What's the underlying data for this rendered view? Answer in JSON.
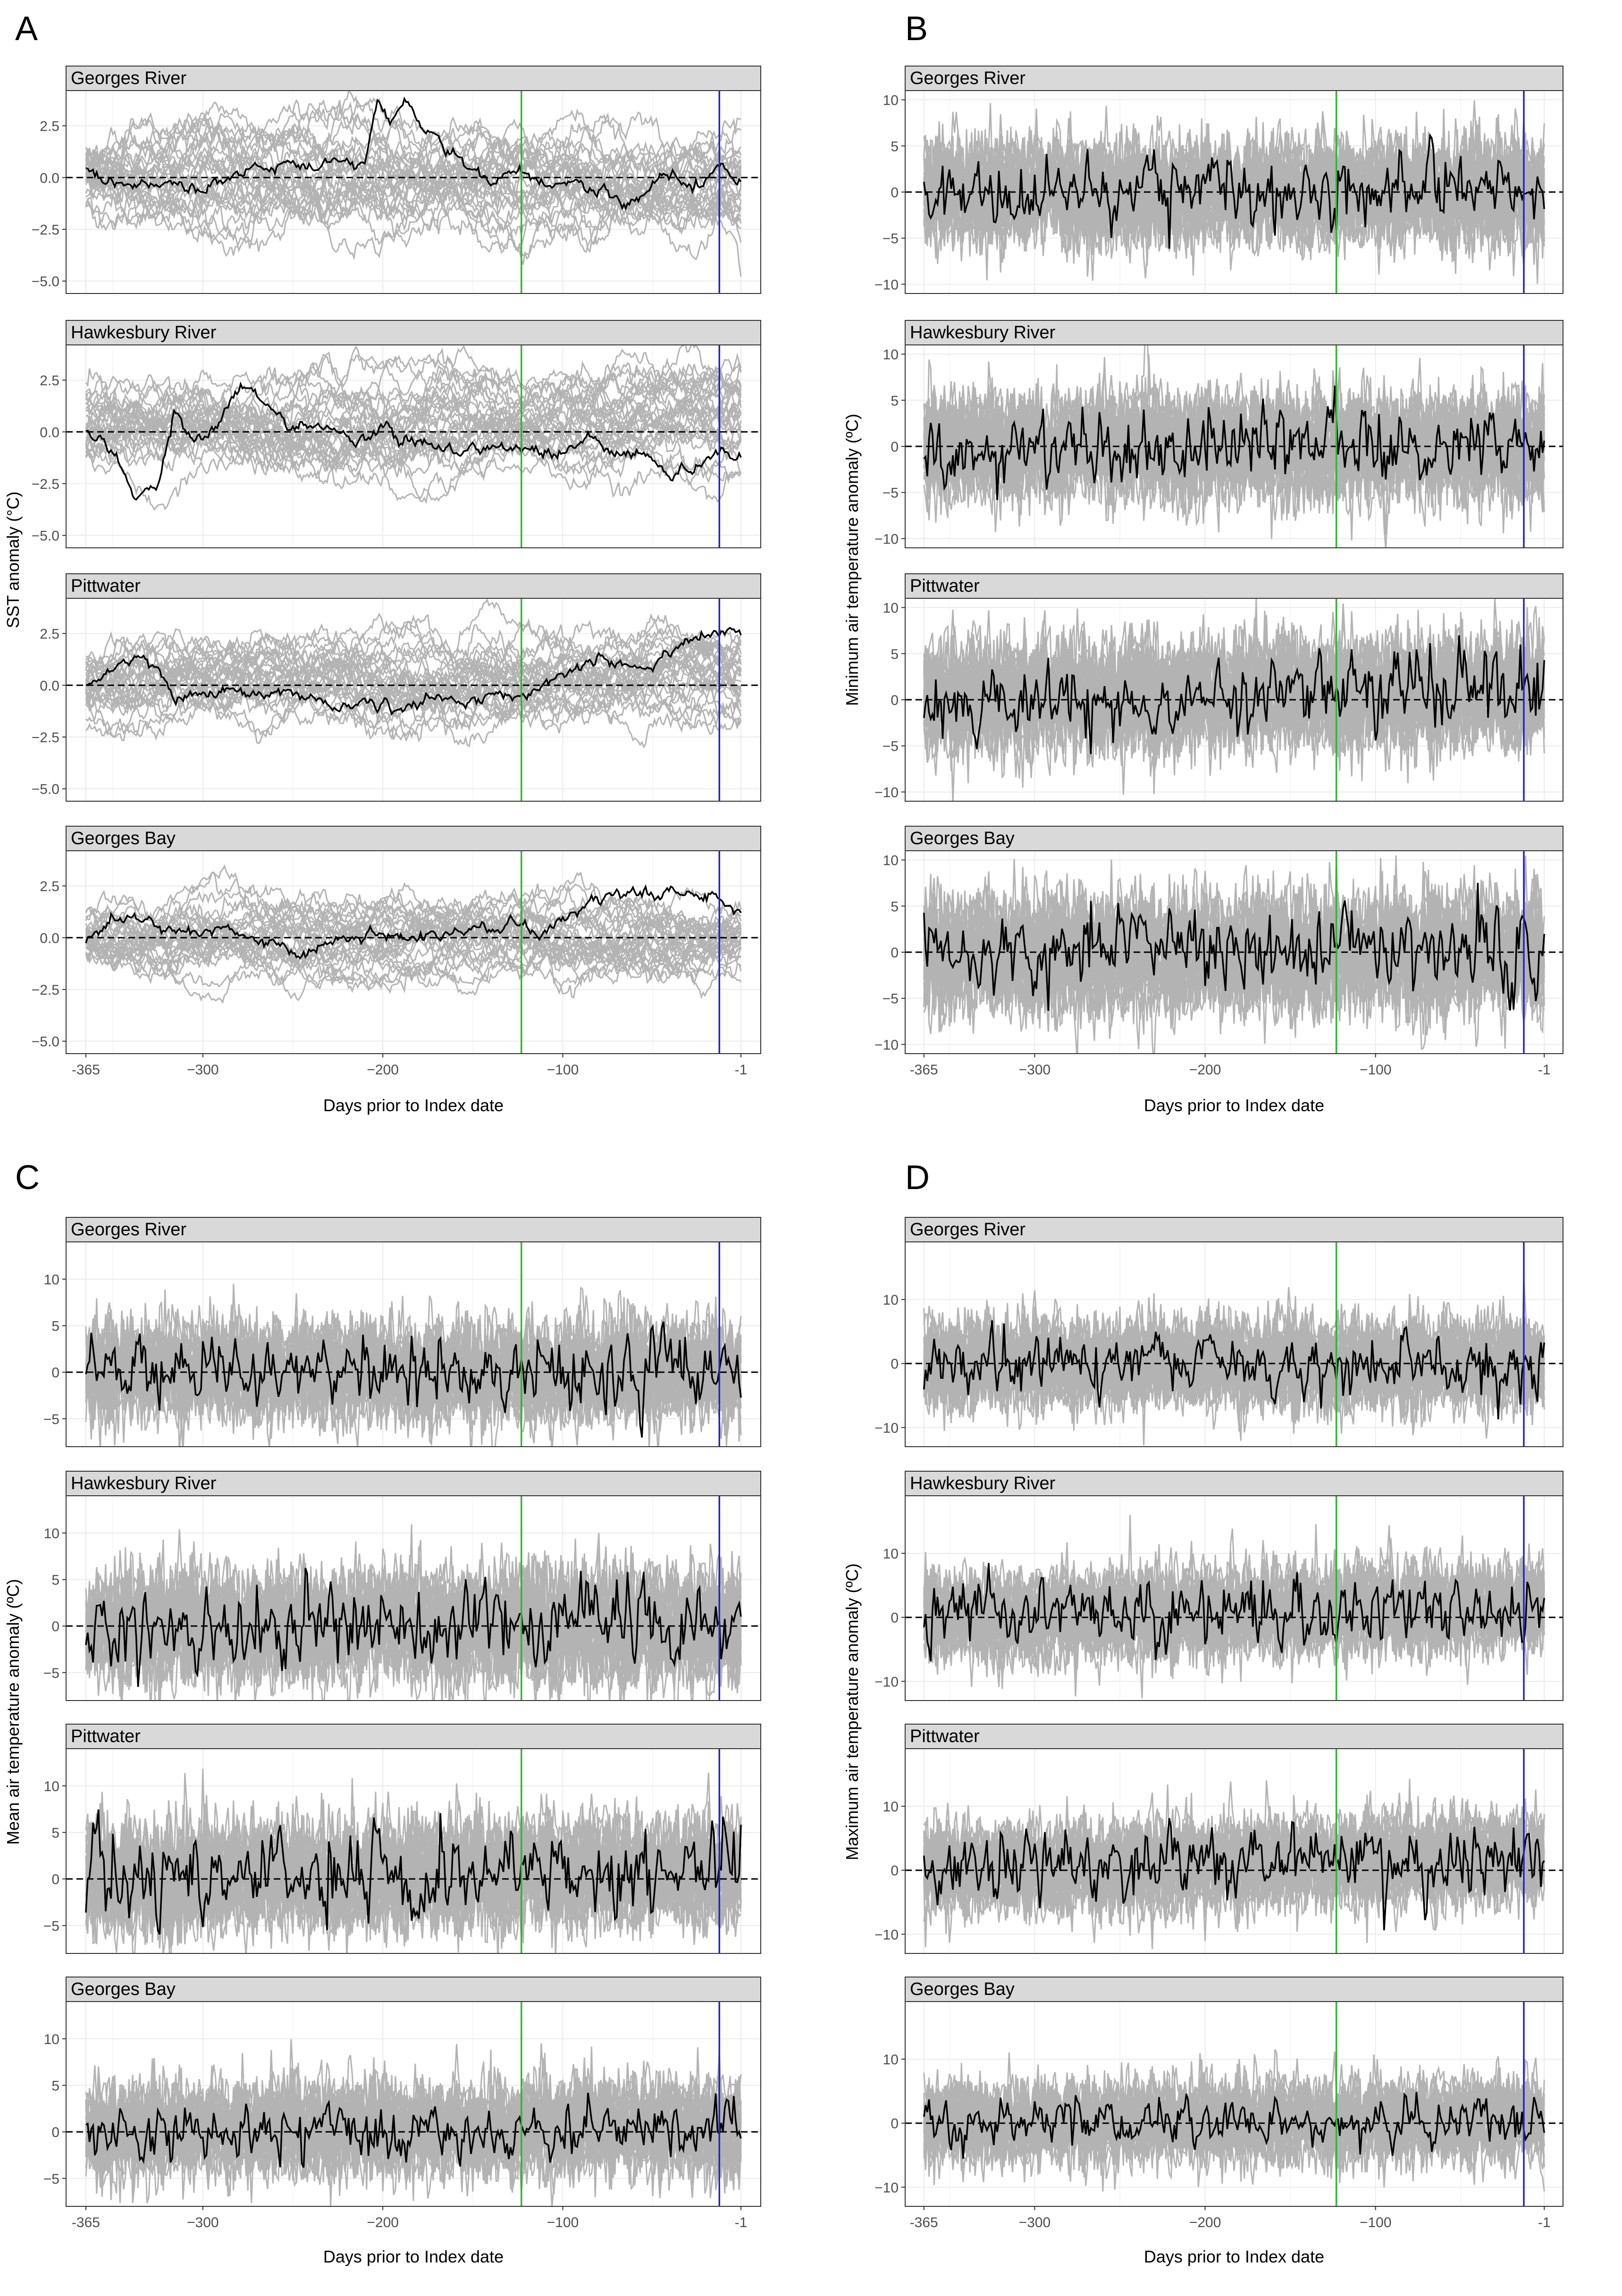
{
  "figure": {
    "panel_letters": [
      "A",
      "B",
      "C",
      "D"
    ],
    "facet_titles": [
      "Georges River",
      "Hawkesbury River",
      "Pittwater",
      "Georges Bay"
    ],
    "xlabel": "Days prior to Index date",
    "x_ticks": [
      -365,
      -300,
      -200,
      -100,
      -1
    ],
    "x_tick_labels": [
      "-365",
      "−300",
      "−200",
      "−100",
      "-1"
    ],
    "vlines": [
      {
        "x": -123,
        "color": "#2db82d"
      },
      {
        "x": -13,
        "color": "#2424c8"
      }
    ],
    "colors": {
      "background_lines": "#b3b3b3",
      "index_line": "#000000",
      "strip": "#d9d9d9",
      "grid": "#ebebeb"
    }
  },
  "chart_data": [
    {
      "panel": "A",
      "type": "line",
      "ylabel": "SST anomaly (°C)",
      "xlim": [
        -376,
        10
      ],
      "ylim": [
        -5.6,
        4.2
      ],
      "y_ticks": [
        -5.0,
        -2.5,
        0.0,
        2.5
      ],
      "y_tick_labels": [
        "−5.0",
        "−2.5",
        "0.0",
        "2.5"
      ],
      "hline": 0,
      "facets": [
        {
          "name": "Georges River",
          "spread": 1.3,
          "noise": 0.3,
          "background_series": 30,
          "index_series": [
            [
              -365,
              0.5
            ],
            [
              -355,
              -0.3
            ],
            [
              -340,
              -0.5
            ],
            [
              -320,
              -0.2
            ],
            [
              -300,
              -0.6
            ],
            [
              -280,
              0.3
            ],
            [
              -260,
              0.5
            ],
            [
              -240,
              0.4
            ],
            [
              -225,
              0.9
            ],
            [
              -210,
              0.6
            ],
            [
              -203,
              3.5
            ],
            [
              -196,
              2.5
            ],
            [
              -188,
              3.7
            ],
            [
              -180,
              2.6
            ],
            [
              -170,
              1.8
            ],
            [
              -160,
              0.9
            ],
            [
              -150,
              0.3
            ],
            [
              -140,
              -0.2
            ],
            [
              -123,
              0.2
            ],
            [
              -110,
              -0.4
            ],
            [
              -100,
              -0.2
            ],
            [
              -80,
              -0.6
            ],
            [
              -65,
              -1.3
            ],
            [
              -55,
              -0.8
            ],
            [
              -45,
              0.3
            ],
            [
              -35,
              -0.1
            ],
            [
              -25,
              -0.6
            ],
            [
              -13,
              0.7
            ],
            [
              -5,
              -0.3
            ],
            [
              -1,
              -0.3
            ]
          ]
        },
        {
          "name": "Hawkesbury River",
          "spread": 1.2,
          "noise": 0.28,
          "background_series": 30,
          "index_series": [
            [
              -365,
              0.1
            ],
            [
              -350,
              -0.8
            ],
            [
              -338,
              -3.0
            ],
            [
              -325,
              -2.6
            ],
            [
              -316,
              0.8
            ],
            [
              -305,
              -0.3
            ],
            [
              -292,
              0.3
            ],
            [
              -282,
              1.8
            ],
            [
              -272,
              2.0
            ],
            [
              -262,
              1.0
            ],
            [
              -245,
              0.0
            ],
            [
              -230,
              0.1
            ],
            [
              -215,
              -0.5
            ],
            [
              -200,
              0.2
            ],
            [
              -190,
              -0.2
            ],
            [
              -180,
              -0.4
            ],
            [
              -165,
              -0.9
            ],
            [
              -150,
              -0.8
            ],
            [
              -123,
              -0.8
            ],
            [
              -100,
              -0.9
            ],
            [
              -85,
              -0.3
            ],
            [
              -70,
              -1.2
            ],
            [
              -55,
              -1.0
            ],
            [
              -40,
              -2.1
            ],
            [
              -25,
              -1.7
            ],
            [
              -13,
              -0.9
            ],
            [
              -5,
              -1.3
            ],
            [
              -1,
              -1.2
            ]
          ]
        },
        {
          "name": "Pittwater",
          "spread": 1.1,
          "noise": 0.26,
          "background_series": 30,
          "index_series": [
            [
              -365,
              -0.1
            ],
            [
              -355,
              0.6
            ],
            [
              -345,
              1.0
            ],
            [
              -335,
              1.4
            ],
            [
              -325,
              0.8
            ],
            [
              -315,
              -0.6
            ],
            [
              -300,
              -0.4
            ],
            [
              -285,
              -0.2
            ],
            [
              -270,
              -0.5
            ],
            [
              -255,
              -0.2
            ],
            [
              -240,
              -0.6
            ],
            [
              -225,
              -1.2
            ],
            [
              -210,
              -0.8
            ],
            [
              -190,
              -1.1
            ],
            [
              -170,
              -0.6
            ],
            [
              -150,
              -0.9
            ],
            [
              -135,
              -0.4
            ],
            [
              -123,
              -0.6
            ],
            [
              -110,
              0.1
            ],
            [
              -95,
              0.6
            ],
            [
              -80,
              1.4
            ],
            [
              -70,
              1.2
            ],
            [
              -55,
              0.6
            ],
            [
              -45,
              1.4
            ],
            [
              -35,
              2.0
            ],
            [
              -25,
              2.4
            ],
            [
              -13,
              2.3
            ],
            [
              -5,
              2.9
            ],
            [
              -1,
              3.0
            ]
          ]
        },
        {
          "name": "Georges Bay",
          "spread": 1.0,
          "noise": 0.24,
          "background_series": 30,
          "index_series": [
            [
              -365,
              0.0
            ],
            [
              -355,
              0.6
            ],
            [
              -345,
              1.0
            ],
            [
              -335,
              0.9
            ],
            [
              -320,
              0.4
            ],
            [
              -305,
              0.2
            ],
            [
              -290,
              0.4
            ],
            [
              -275,
              0.1
            ],
            [
              -260,
              -0.2
            ],
            [
              -248,
              -0.9
            ],
            [
              -238,
              -0.5
            ],
            [
              -225,
              -0.2
            ],
            [
              -210,
              0.2
            ],
            [
              -195,
              -0.1
            ],
            [
              -180,
              0.0
            ],
            [
              -165,
              0.2
            ],
            [
              -150,
              0.4
            ],
            [
              -135,
              0.4
            ],
            [
              -123,
              0.6
            ],
            [
              -112,
              0.2
            ],
            [
              -100,
              0.9
            ],
            [
              -90,
              1.5
            ],
            [
              -75,
              1.9
            ],
            [
              -60,
              2.3
            ],
            [
              -45,
              2.2
            ],
            [
              -30,
              1.9
            ],
            [
              -13,
              2.0
            ],
            [
              -5,
              1.4
            ],
            [
              -1,
              1.2
            ]
          ]
        }
      ]
    },
    {
      "panel": "B",
      "type": "line",
      "ylabel": "Minimum air temperature anomaly (ºC)",
      "xlim": [
        -376,
        10
      ],
      "ylim": [
        -11,
        11
      ],
      "y_ticks": [
        -10,
        -5,
        0,
        5,
        10
      ],
      "y_tick_labels": [
        "−10",
        "−5",
        "0",
        "5",
        "10"
      ],
      "hline": 0,
      "facets": [
        {
          "name": "Georges River",
          "spread": 4.5,
          "index_amp": 3.0,
          "trend_start": 0.0,
          "trend_end": 0.0,
          "background_series": 30
        },
        {
          "name": "Hawkesbury River",
          "spread": 4.5,
          "index_amp": 3.2,
          "trend_start": 0.0,
          "trend_end": 0.0,
          "background_series": 30
        },
        {
          "name": "Pittwater",
          "spread": 4.8,
          "index_amp": 3.4,
          "trend_start": 0.0,
          "trend_end": 1.0,
          "background_series": 30
        },
        {
          "name": "Georges Bay",
          "spread": 5.0,
          "index_amp": 3.5,
          "trend_start": 0.0,
          "trend_end": 0.0,
          "background_series": 30
        }
      ]
    },
    {
      "panel": "C",
      "type": "line",
      "ylabel": "Mean air temperature anomaly (ºC)",
      "xlim": [
        -376,
        10
      ],
      "ylim": [
        -8,
        14
      ],
      "y_ticks": [
        -5,
        0,
        5,
        10
      ],
      "y_tick_labels": [
        "−5",
        "0",
        "5",
        "10"
      ],
      "hline": 0,
      "facets": [
        {
          "name": "Georges River",
          "spread": 4.2,
          "index_amp": 3.0,
          "trend_start": 0.0,
          "trend_end": 0.0,
          "background_series": 30
        },
        {
          "name": "Hawkesbury River",
          "spread": 4.8,
          "index_amp": 3.5,
          "trend_start": 0.0,
          "trend_end": 0.0,
          "background_series": 30
        },
        {
          "name": "Pittwater",
          "spread": 4.6,
          "index_amp": 3.8,
          "trend_start": 0.0,
          "trend_end": 1.0,
          "background_series": 30
        },
        {
          "name": "Georges Bay",
          "spread": 4.0,
          "index_amp": 2.5,
          "trend_start": 0.0,
          "trend_end": 0.5,
          "background_series": 30
        }
      ]
    },
    {
      "panel": "D",
      "type": "line",
      "ylabel": "Maximum air temperature anomaly (ºC)",
      "xlim": [
        -376,
        10
      ],
      "ylim": [
        -13,
        19
      ],
      "y_ticks": [
        -10,
        0,
        10
      ],
      "y_tick_labels": [
        "−10",
        "0",
        "10"
      ],
      "hline": 0,
      "facets": [
        {
          "name": "Georges River",
          "spread": 5.5,
          "index_amp": 4.0,
          "trend_start": 0.0,
          "trend_end": 0.0,
          "background_series": 30
        },
        {
          "name": "Hawkesbury River",
          "spread": 5.5,
          "index_amp": 4.5,
          "trend_start": 0.0,
          "trend_end": 1.5,
          "background_series": 30
        },
        {
          "name": "Pittwater",
          "spread": 5.5,
          "index_amp": 4.5,
          "trend_start": 0.0,
          "trend_end": 2.0,
          "background_series": 30
        },
        {
          "name": "Georges Bay",
          "spread": 5.0,
          "index_amp": 3.0,
          "trend_start": 0.0,
          "trend_end": 0.5,
          "background_series": 30
        }
      ]
    }
  ]
}
